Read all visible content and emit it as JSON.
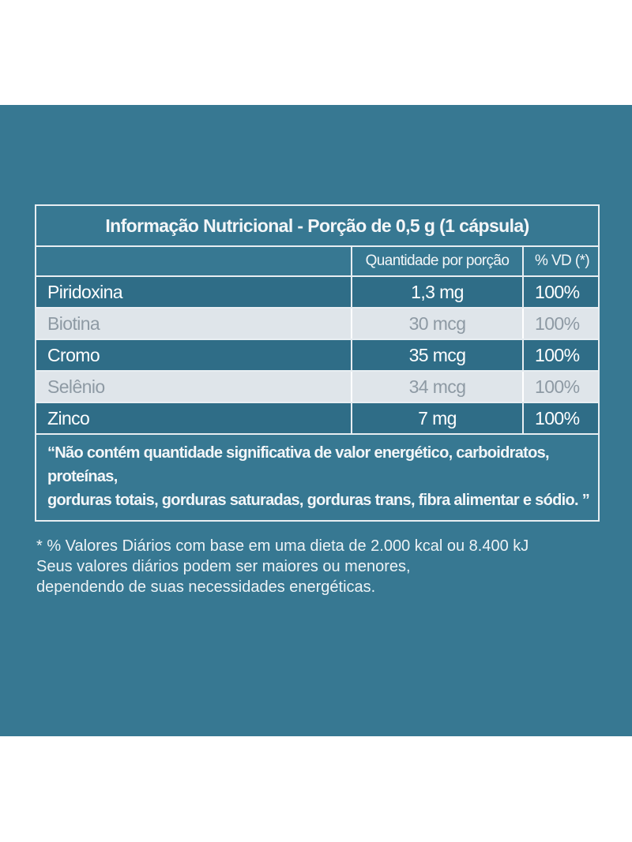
{
  "table": {
    "title": "Informação Nutricional - Porção de 0,5 g (1 cápsula)",
    "headers": {
      "nutrient": "",
      "quantity": "Quantidade por porção",
      "vd": "% VD (*)"
    },
    "rows": [
      {
        "name": "Piridoxina",
        "quantity": "1,3 mg",
        "vd": "100%"
      },
      {
        "name": "Biotina",
        "quantity": "30 mcg",
        "vd": "100%"
      },
      {
        "name": "Cromo",
        "quantity": "35 mcg",
        "vd": "100%"
      },
      {
        "name": "Selênio",
        "quantity": "34 mcg",
        "vd": "100%"
      },
      {
        "name": "Zinco",
        "quantity": "7 mg",
        "vd": "100%"
      }
    ],
    "note_line1": "“Não contém quantidade significativa de valor energético, carboidratos, proteínas,",
    "note_line2": "gorduras totais, gorduras saturadas, gorduras trans, fibra alimentar e sódio. ”"
  },
  "footnote": {
    "line1": "* % Valores Diários com base em uma dieta de 2.000 kcal ou 8.400 kJ",
    "line2": "Seus valores diários podem ser maiores ou menores,",
    "line3": "dependendo de suas necessidades energéticas."
  },
  "colors": {
    "panel": "#377892",
    "row_dark": "#2f6d87",
    "row_light": "#dfe5ea",
    "border": "#e8eef2"
  }
}
